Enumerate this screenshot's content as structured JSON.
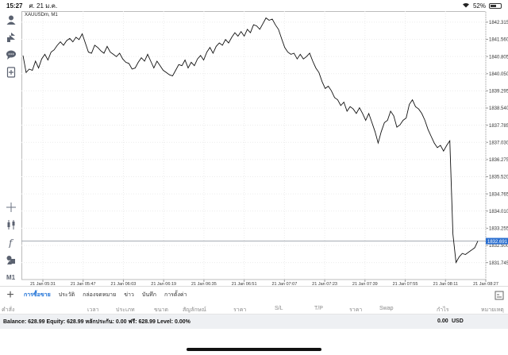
{
  "status_bar": {
    "time": "15:27",
    "date": "ศ. 21 ม.ค.",
    "battery": "52%",
    "battery_level": 0.52
  },
  "toolbar": {
    "icons": [
      "account-icon",
      "trade-icon",
      "chat-icon",
      "add-document-icon",
      "crosshair-icon",
      "candlestick-icon",
      "indicator-icon",
      "objects-icon"
    ],
    "timeframe": "M1"
  },
  "chart": {
    "symbol_label": "XAUUSDm, M1"
  },
  "chart_data": {
    "type": "line",
    "title": "",
    "symbol": "XAUUSDm",
    "timeframe": "M1",
    "ylim": [
      1831.0,
      1842.8
    ],
    "y_ticks": [
      "1842.315",
      "1841.560",
      "1840.805",
      "1840.050",
      "1839.295",
      "1838.540",
      "1837.785",
      "1837.030",
      "1836.275",
      "1835.520",
      "1834.765",
      "1834.010",
      "1833.255",
      "1832.500",
      "1831.745"
    ],
    "current_price": "1832.691",
    "current_price_value": 1832.691,
    "x_ticks": [
      "21 Jan 05:31",
      "21 Jan 05:47",
      "21 Jan 06:03",
      "21 Jan 06:19",
      "21 Jan 06:35",
      "21 Jan 06:51",
      "21 Jan 07:07",
      "21 Jan 07:23",
      "21 Jan 07:39",
      "21 Jan 07:55",
      "21 Jan 08:11",
      "21 Jan 08:27"
    ],
    "series": [
      {
        "y": [
          1840.85,
          1840.1,
          1840.25,
          1840.2,
          1840.6,
          1840.3,
          1840.7,
          1840.9,
          1840.65,
          1841.0,
          1841.1,
          1841.3,
          1841.45,
          1841.3,
          1841.5,
          1841.6,
          1841.45,
          1841.65,
          1841.55,
          1841.8,
          1841.4,
          1841.0,
          1840.95,
          1841.3,
          1841.2,
          1841.05,
          1840.95,
          1841.25,
          1841.0,
          1840.9,
          1840.8,
          1840.95,
          1840.7,
          1840.55,
          1840.5,
          1840.25,
          1840.3,
          1840.55,
          1840.75,
          1840.6,
          1840.9,
          1840.6,
          1840.3,
          1840.6,
          1840.4,
          1840.2,
          1840.1,
          1840.0,
          1839.95,
          1840.2,
          1840.45,
          1840.4,
          1840.65,
          1840.3,
          1840.55,
          1840.4,
          1840.7,
          1840.85,
          1840.65,
          1841.0,
          1841.2,
          1840.95,
          1841.25,
          1841.4,
          1841.3,
          1841.55,
          1841.4,
          1841.65,
          1841.85,
          1841.7,
          1841.9,
          1841.7,
          1842.0,
          1841.85,
          1842.2,
          1842.15,
          1842.0,
          1842.25,
          1842.5,
          1842.4,
          1842.45,
          1842.2,
          1842.0,
          1841.6,
          1841.2,
          1841.0,
          1840.9,
          1840.95,
          1840.7,
          1840.9,
          1840.7,
          1840.8,
          1840.95,
          1840.6,
          1840.3,
          1840.1,
          1839.7,
          1839.4,
          1839.5,
          1839.3,
          1839.0,
          1838.9,
          1838.65,
          1838.8,
          1838.4,
          1838.6,
          1838.5,
          1838.3,
          1838.55,
          1838.3,
          1838.0,
          1838.3,
          1837.9,
          1837.5,
          1837.0,
          1837.5,
          1837.9,
          1838.0,
          1838.4,
          1838.2,
          1837.7,
          1837.8,
          1838.0,
          1838.1,
          1838.7,
          1838.9,
          1838.6,
          1838.5,
          1838.3,
          1838.0,
          1837.6,
          1837.3,
          1837.0,
          1836.8,
          1836.9,
          1836.65,
          1836.9,
          1837.1,
          1833.0,
          1831.75,
          1832.0,
          1832.15,
          1832.1,
          1832.2,
          1832.3,
          1832.4,
          1832.691
        ]
      }
    ],
    "grid": true,
    "line_color": "#111111"
  },
  "bottom_tabs": {
    "plus": "+",
    "items": [
      {
        "label": "การซื้อขาย",
        "active": true
      },
      {
        "label": "ประวัติ",
        "active": false
      },
      {
        "label": "กล่องจดหมาย",
        "active": false
      },
      {
        "label": "ข่าว",
        "active": false
      },
      {
        "label": "บันทึก",
        "active": false
      },
      {
        "label": "การตั้งค่า",
        "active": false
      }
    ]
  },
  "columns": [
    "คำสั่ง",
    "เวลา",
    "ประเภท",
    "ขนาด",
    "สัญลักษณ์",
    "ราคา",
    "S/L",
    "T/P",
    "ราคา",
    "Swap",
    "กำไร",
    "หมายเหตุ"
  ],
  "balance_bar": {
    "summary": "Balance: 628.99 Equity: 628.99 หลักประกัน: 0.00 ฟรี: 628.99 Level: 0.00%",
    "profit": "0.00",
    "currency": "USD"
  }
}
